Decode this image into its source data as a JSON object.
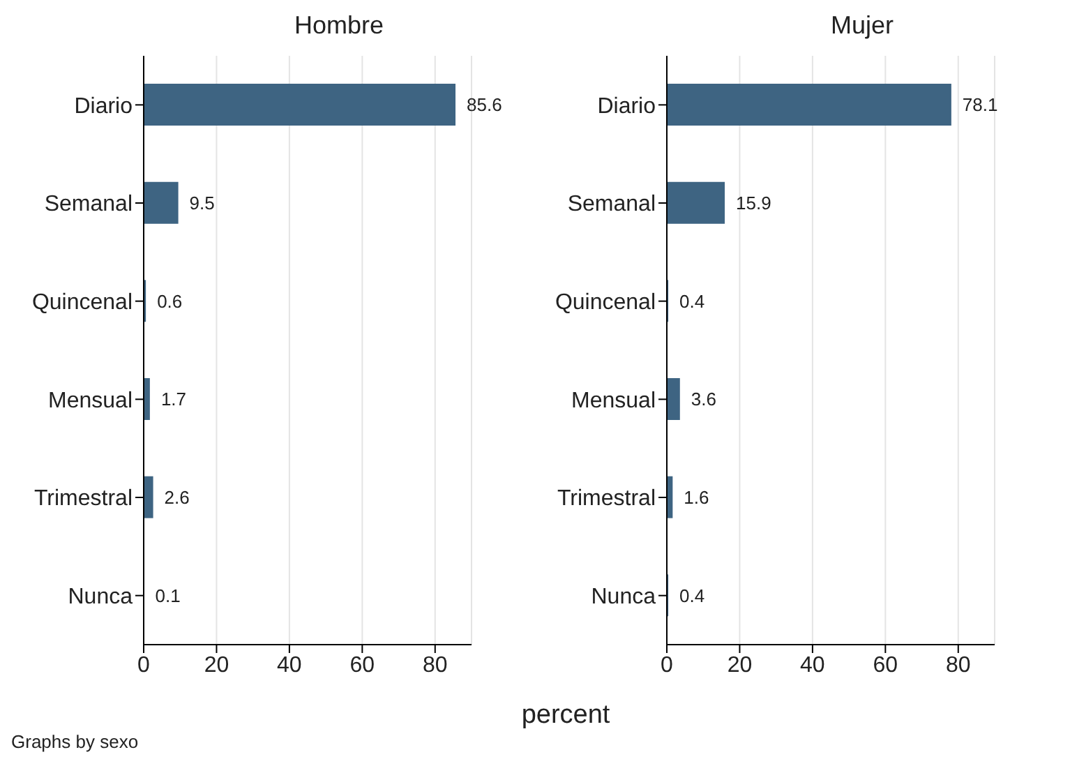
{
  "chart_data": [
    {
      "type": "bar",
      "orientation": "horizontal",
      "title": "Hombre",
      "xlabel": "percent",
      "categories": [
        "Diario",
        "Semanal",
        "Quincenal",
        "Mensual",
        "Trimestral",
        "Nunca"
      ],
      "values": [
        85.6,
        9.5,
        0.6,
        1.7,
        2.6,
        0.1
      ],
      "color": "#3e6482",
      "xlim": [
        0,
        90
      ],
      "xticks": [
        0,
        20,
        40,
        60,
        80
      ],
      "grid": "x",
      "data_labels": true,
      "annotations": [
        "Graphs by sexo"
      ]
    },
    {
      "type": "bar",
      "orientation": "horizontal",
      "title": "Mujer",
      "categories": [
        "Diario",
        "Semanal",
        "Quincenal",
        "Mensual",
        "Trimestral",
        "Nunca"
      ],
      "values": [
        78.1,
        15.9,
        0.4,
        3.6,
        1.6,
        0.4
      ],
      "color": "#3e6482",
      "xlim": [
        0,
        90
      ],
      "xticks": [
        0,
        20,
        40,
        60,
        80
      ],
      "grid": "x",
      "data_labels": true
    }
  ]
}
